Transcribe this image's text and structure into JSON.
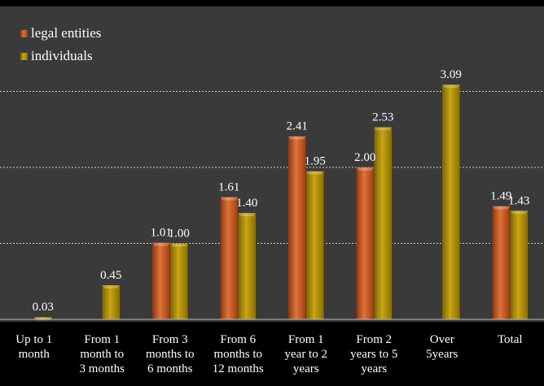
{
  "chart_data": {
    "type": "bar",
    "categories": [
      [
        "Up to 1",
        "month"
      ],
      [
        "From 1",
        "month to",
        "3 months"
      ],
      [
        "From 3",
        "months to",
        "6 months"
      ],
      [
        "From 6",
        "months to",
        "12 months"
      ],
      [
        "From 1",
        "year to 2",
        "years"
      ],
      [
        "From 2",
        "years to 5",
        "years"
      ],
      [
        "Over",
        "5years"
      ],
      [
        "Total"
      ]
    ],
    "series": [
      {
        "name": "legal entities",
        "color": "#c0521c",
        "values": [
          null,
          null,
          1.01,
          1.61,
          2.41,
          2.0,
          null,
          1.49
        ],
        "labels": [
          "",
          "",
          "1.01",
          "1.61",
          "2.41",
          "2.00",
          "",
          "1.49"
        ]
      },
      {
        "name": "individuals",
        "color": "#a8860a",
        "values": [
          0.03,
          0.45,
          1.0,
          1.4,
          1.95,
          2.53,
          3.09,
          1.43
        ],
        "labels": [
          "0.03",
          "0.45",
          "1.00",
          "1.40",
          "1.95",
          "2.53",
          "3.09",
          "1.43"
        ]
      }
    ],
    "ylim": [
      0,
      3.2
    ],
    "grid": true,
    "gridlines": [
      1,
      2,
      3
    ],
    "legend_position": "top-left",
    "background": "#3a3a3a",
    "plot_background": "#3a3a3a"
  }
}
